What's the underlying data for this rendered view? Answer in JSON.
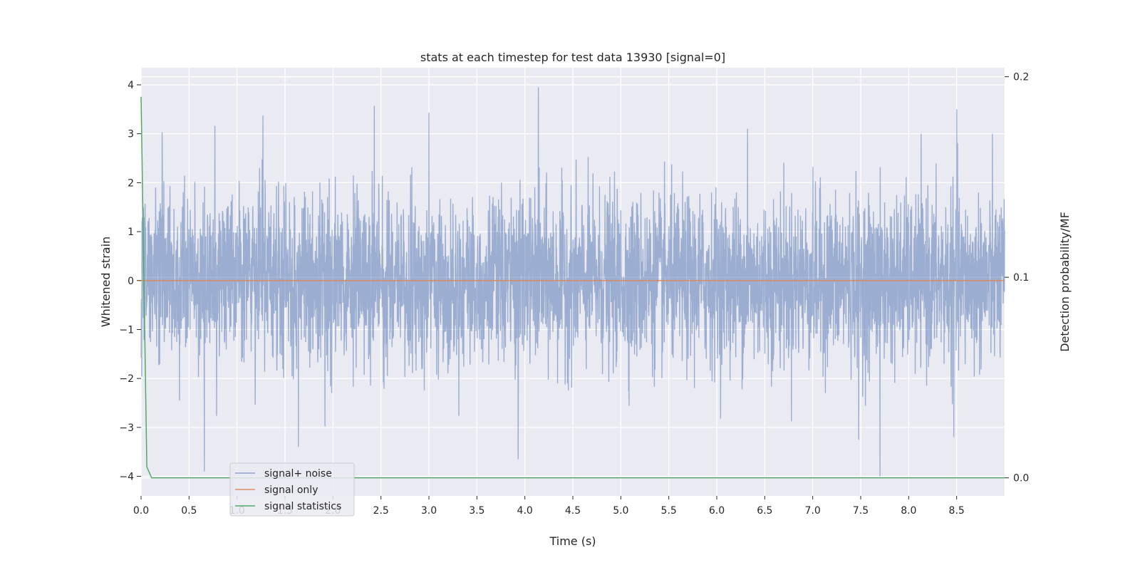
{
  "chart_data": {
    "type": "line",
    "title": "stats at each timestep for test data 13930 [signal=0]",
    "xlabel": "Time (s)",
    "ylabel": "Whitened strain",
    "y2label": "Detection probability/MF",
    "xlim": [
      0,
      9.0
    ],
    "ylim": [
      -4.4,
      4.35
    ],
    "y2lim": [
      -0.009,
      0.2045
    ],
    "xticks": [
      0.0,
      0.5,
      1.0,
      1.5,
      2.0,
      2.5,
      3.0,
      3.5,
      4.0,
      4.5,
      5.0,
      5.5,
      6.0,
      6.5,
      7.0,
      7.5,
      8.0,
      8.5
    ],
    "xtick_labels": [
      "0.0",
      "0.5",
      "1.0",
      "1.5",
      "2.0",
      "2.5",
      "3.0",
      "3.5",
      "4.0",
      "4.5",
      "5.0",
      "5.5",
      "6.0",
      "6.5",
      "7.0",
      "7.5",
      "8.0",
      "8.5"
    ],
    "yticks": [
      4,
      3,
      2,
      1,
      0,
      -1,
      -2,
      -3,
      -4
    ],
    "ytick_labels": [
      "4",
      "3",
      "2",
      "1",
      "0",
      "−1",
      "−2",
      "−3",
      "−4"
    ],
    "y2ticks": [
      0.2,
      0.1,
      0.0
    ],
    "y2tick_labels": [
      "0.2",
      "0.1",
      "0.0"
    ],
    "grid": true,
    "legend_placement": "lower-left",
    "colors": {
      "background": "#eaeaf2",
      "grid": "#ffffff",
      "noise": "#4c72b0",
      "signal": "#dd8452",
      "statistics": "#55a868"
    },
    "series": [
      {
        "name": "signal+ noise",
        "axis": "left",
        "kind": "noise",
        "duration": 9.0,
        "sample_count": 4096,
        "amplitude_std": 0.85,
        "peaks": [
          {
            "x": 0.22,
            "y": 3.03
          },
          {
            "x": 0.77,
            "y": 3.16
          },
          {
            "x": 1.27,
            "y": 3.37
          },
          {
            "x": 2.43,
            "y": 3.57
          },
          {
            "x": 3.0,
            "y": 3.43
          },
          {
            "x": 4.14,
            "y": 3.95
          },
          {
            "x": 6.32,
            "y": 3.1
          },
          {
            "x": 8.5,
            "y": 3.5
          },
          {
            "x": 0.66,
            "y": -3.9
          },
          {
            "x": 1.64,
            "y": -3.4
          },
          {
            "x": 3.93,
            "y": -3.65
          },
          {
            "x": 7.48,
            "y": -3.25
          },
          {
            "x": 7.7,
            "y": -4.0
          },
          {
            "x": 8.47,
            "y": -3.2
          }
        ]
      },
      {
        "name": "signal only",
        "axis": "left",
        "x": [
          0.0,
          9.0
        ],
        "y": [
          0.0,
          0.0
        ]
      },
      {
        "name": "signal statistics",
        "axis": "right",
        "x": [
          0.0,
          0.06,
          0.11,
          1.0,
          2.0,
          3.0,
          4.0,
          5.0,
          6.0,
          7.0,
          8.0,
          9.0
        ],
        "y": [
          0.19,
          0.0055,
          0.0,
          0.0,
          0.0,
          0.0,
          0.0,
          0.0,
          0.0,
          0.0,
          0.0,
          0.0
        ]
      }
    ]
  }
}
